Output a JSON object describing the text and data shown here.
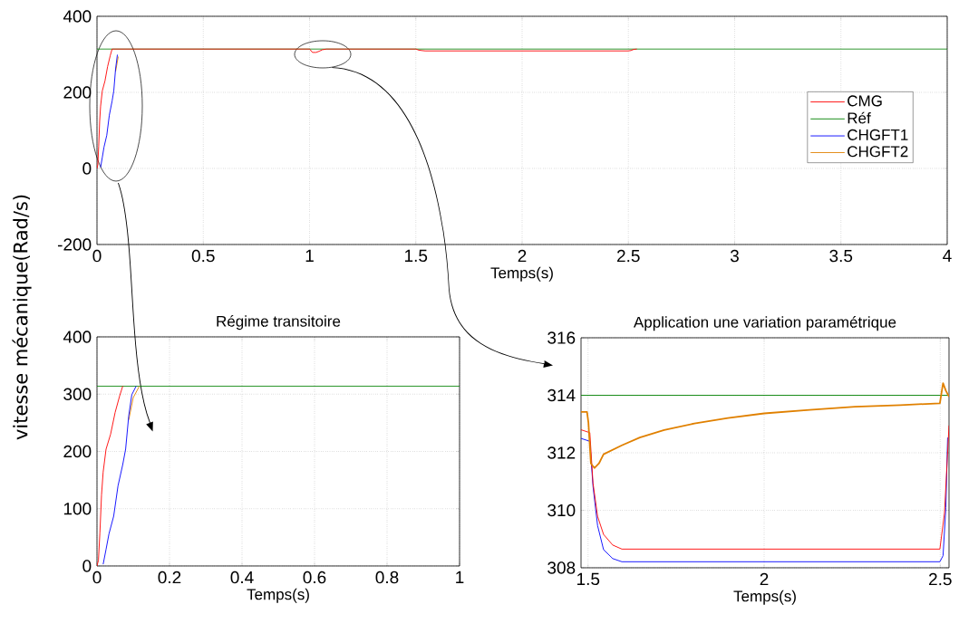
{
  "chart_data": [
    {
      "type": "line",
      "xlabel": "Temps(s)",
      "ylabel": "vitesse mécanique(Rad/s)",
      "xlim": [
        0,
        4
      ],
      "ylim": [
        -200,
        400
      ],
      "xticks": [
        0,
        0.5,
        1,
        1.5,
        2,
        2.5,
        3,
        3.5,
        4
      ],
      "yticks": [
        -200,
        0,
        200,
        400
      ],
      "grid": true,
      "legend": "right",
      "series": [
        {
          "name": "CMG",
          "color": "#ff0000",
          "x": [
            0,
            0.004,
            0.008,
            0.0125,
            0.017,
            0.025,
            0.0375,
            0.05,
            0.0625,
            0.071,
            1.0,
            1.014,
            1.03,
            1.045,
            1.06,
            1.08,
            1.5,
            1.514,
            1.527,
            1.544,
            1.57,
            1.596,
            2.499,
            2.512,
            2.525,
            2.54
          ],
          "values": [
            0,
            10,
            58,
            124,
            164,
            204,
            230,
            268,
            297,
            314,
            314,
            305,
            305,
            308,
            312,
            314,
            314,
            311,
            310,
            309,
            309,
            309,
            309,
            310,
            313,
            314
          ]
        },
        {
          "name": "Réf",
          "color": "#008000",
          "x": [
            0,
            4
          ],
          "values": [
            314,
            314
          ]
        },
        {
          "name": "CHGFT1",
          "color": "#0000ff",
          "x": [
            0.017,
            0.025,
            0.033,
            0.046,
            0.058,
            0.071,
            0.079,
            0.0875,
            0.096
          ],
          "values": [
            3,
            29,
            56,
            87,
            140,
            177,
            204,
            262,
            299
          ]
        },
        {
          "name": "CHGFT2",
          "color": "#e08000",
          "x": [
            0.0875,
            0.1
          ],
          "values": [
            255,
            294
          ]
        }
      ]
    },
    {
      "type": "line",
      "title": "Régime transitoire",
      "xlabel": "Temps(s)",
      "xlim": [
        0,
        1
      ],
      "ylim": [
        0,
        400
      ],
      "xticks": [
        0,
        0.2,
        0.4,
        0.6,
        0.8,
        1
      ],
      "yticks": [
        0,
        100,
        200,
        300,
        400
      ],
      "grid": true,
      "series": [
        {
          "color": "#008000",
          "x": [
            0,
            1
          ],
          "values": [
            314,
            314
          ]
        },
        {
          "color": "#e08000",
          "x": [
            0.0875,
            0.1,
            0.117
          ],
          "values": [
            255,
            294,
            314
          ]
        },
        {
          "color": "#0000ff",
          "x": [
            0.017,
            0.025,
            0.033,
            0.046,
            0.058,
            0.071,
            0.079,
            0.0875,
            0.096,
            0.108
          ],
          "values": [
            3,
            29,
            56,
            87,
            140,
            177,
            204,
            262,
            299,
            314
          ]
        },
        {
          "color": "#ff0000",
          "x": [
            0,
            0.004,
            0.008,
            0.0125,
            0.017,
            0.025,
            0.0375,
            0.05,
            0.0625,
            0.071
          ],
          "values": [
            0,
            10,
            58,
            124,
            164,
            204,
            230,
            268,
            297,
            314
          ]
        }
      ]
    },
    {
      "type": "line",
      "title": "Application une variation paramétrique",
      "xlabel": "Temps(s)",
      "xlim": [
        1.48,
        2.525
      ],
      "ylim": [
        308,
        316
      ],
      "xticks": [
        1.5,
        2,
        2.5
      ],
      "yticks": [
        308,
        310,
        312,
        314,
        316
      ],
      "grid": true,
      "series": [
        {
          "color": "#008000",
          "x": [
            1.48,
            2.525
          ],
          "values": [
            314,
            314
          ]
        },
        {
          "color": "#0000ff",
          "x": [
            1.48,
            1.505,
            1.514,
            1.527,
            1.544,
            1.57,
            1.596,
            2.499,
            2.508,
            2.516,
            2.521
          ],
          "values": [
            312.5,
            312.4,
            310.84,
            309.47,
            308.63,
            308.32,
            308.21,
            308.21,
            308.42,
            310.1,
            312.53
          ]
        },
        {
          "color": "#ff0000",
          "x": [
            1.48,
            1.505,
            1.514,
            1.527,
            1.544,
            1.57,
            1.596,
            2.499,
            2.512,
            2.525
          ],
          "values": [
            312.8,
            312.7,
            310.95,
            309.79,
            309.16,
            308.79,
            308.65,
            308.65,
            309.89,
            312.95
          ]
        },
        {
          "color": "#e08000",
          "x": [
            1.48,
            1.497,
            1.501,
            1.508,
            1.518,
            1.531,
            1.544,
            1.596,
            1.647,
            1.716,
            1.802,
            1.897,
            2.0,
            2.129,
            2.258,
            2.387,
            2.499,
            2.508,
            2.516,
            2.525
          ],
          "values": [
            313.42,
            313.42,
            313.05,
            311.63,
            311.47,
            311.63,
            311.95,
            312.26,
            312.53,
            312.79,
            313.02,
            313.21,
            313.37,
            313.49,
            313.6,
            313.66,
            313.72,
            314.42,
            314.16,
            313.95
          ]
        }
      ]
    }
  ]
}
